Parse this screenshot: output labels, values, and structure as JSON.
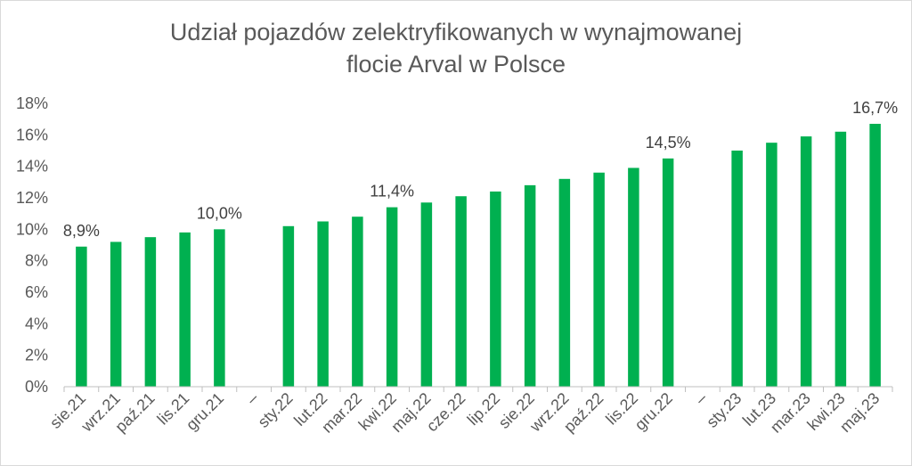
{
  "chart_data": {
    "type": "bar",
    "title_lines": [
      "Udział pojazdów zelektryfikowanych w wynajmowanej",
      "flocie Arval w Polsce"
    ],
    "xlabel": "",
    "ylabel": "",
    "ylim": [
      0,
      18
    ],
    "yticks": [
      "0%",
      "2%",
      "4%",
      "6%",
      "8%",
      "10%",
      "12%",
      "14%",
      "16%",
      "18%"
    ],
    "grid": false,
    "color": "#00b050",
    "categories": [
      "sie.21",
      "wrz.21",
      "paź.21",
      "lis.21",
      "gru.21",
      "–",
      "sty.22",
      "lut.22",
      "mar.22",
      "kwi.22",
      "maj.22",
      "cze.22",
      "lip.22",
      "sie.22",
      "wrz.22",
      "paź.22",
      "lis.22",
      "gru.22",
      "–",
      "sty.23",
      "lut.23",
      "mar.23",
      "kwi.23",
      "maj.23"
    ],
    "values": [
      8.9,
      9.2,
      9.5,
      9.8,
      10.0,
      null,
      10.2,
      10.5,
      10.8,
      11.4,
      11.7,
      12.1,
      12.4,
      12.8,
      13.2,
      13.6,
      13.9,
      14.5,
      null,
      15.0,
      15.5,
      15.9,
      16.2,
      16.7
    ],
    "data_labels": [
      "8,9%",
      null,
      null,
      null,
      "10,0%",
      null,
      null,
      null,
      null,
      "11,4%",
      null,
      null,
      null,
      null,
      null,
      null,
      null,
      "14,5%",
      null,
      null,
      null,
      null,
      null,
      "16,7%"
    ]
  }
}
